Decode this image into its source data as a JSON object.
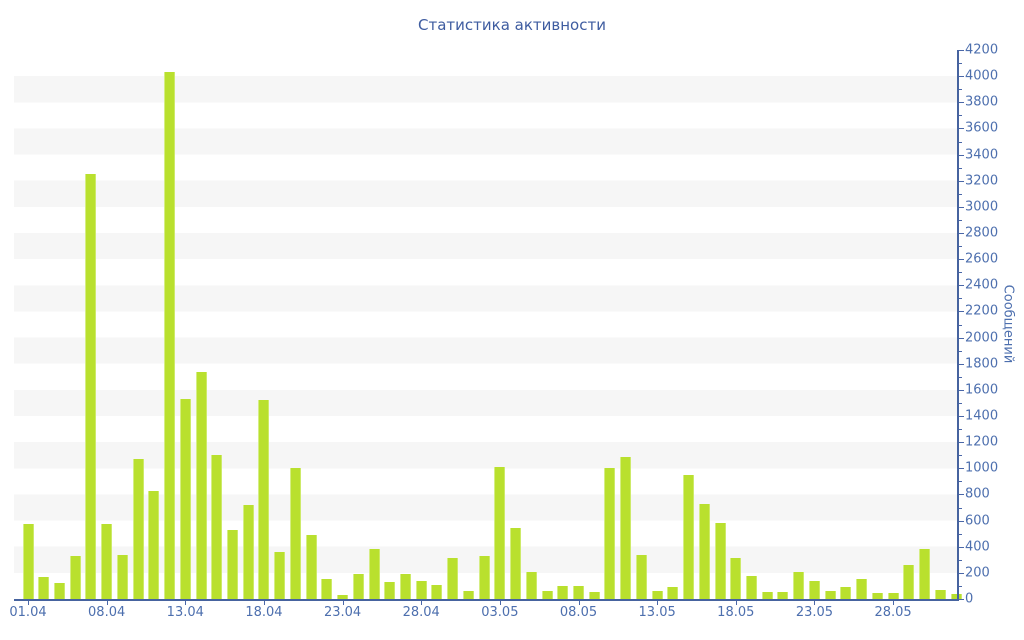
{
  "chart_data": {
    "type": "bar",
    "title": "Статистика активности",
    "ylabel": "Сообщений",
    "ylim": [
      0,
      4200
    ],
    "y_tick_step": 200,
    "y_minor_tick_step": 100,
    "grid": "alternating horizontal bands every 200 units",
    "legend": "none",
    "bar_color": "#b9e02e",
    "band_color": "#f6f6f6",
    "axis_color": "#46639f",
    "label_color": "#4d6fae",
    "title_color": "#3e5ca0",
    "x_tick_every": 5,
    "x_tick_labels": [
      "01.04",
      "08.04",
      "13.04",
      "18.04",
      "23.04",
      "28.04",
      "03.05",
      "08.05",
      "13.05",
      "18.05",
      "23.05",
      "28.05"
    ],
    "values": [
      570,
      170,
      120,
      330,
      3250,
      570,
      340,
      1070,
      830,
      4030,
      1530,
      1740,
      1100,
      530,
      720,
      1520,
      360,
      1000,
      490,
      150,
      30,
      190,
      380,
      130,
      190,
      140,
      110,
      310,
      60,
      330,
      1010,
      540,
      210,
      65,
      100,
      100,
      55,
      1000,
      1090,
      340,
      60,
      90,
      950,
      730,
      580,
      310,
      175,
      55,
      55,
      210,
      135,
      65,
      95,
      155,
      45,
      45,
      260,
      380,
      70,
      40
    ]
  }
}
